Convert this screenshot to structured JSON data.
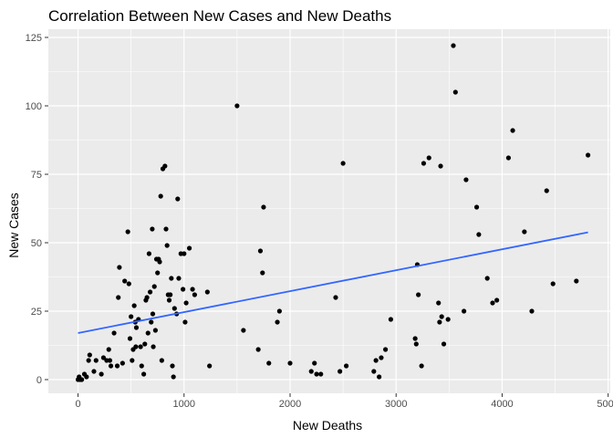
{
  "chart_data": {
    "type": "scatter",
    "title": "Correlation Between New Cases and New Deaths",
    "xlabel": "New Deaths",
    "ylabel": "New Cases",
    "xlim": [
      -280,
      5020
    ],
    "ylim": [
      -5,
      128
    ],
    "x_ticks": [
      0,
      1000,
      2000,
      3000,
      4000,
      5000
    ],
    "y_ticks": [
      0,
      25,
      50,
      75,
      100,
      125
    ],
    "x_minor": [
      500,
      1500,
      2500,
      3500,
      4500
    ],
    "y_minor": [
      12.5,
      37.5,
      62.5,
      87.5,
      112.5
    ],
    "grid": true,
    "legend": "none",
    "trend_line": {
      "x": [
        0,
        4810
      ],
      "y": [
        17,
        53.8
      ],
      "color": "#3366ff"
    },
    "colors": {
      "panel": "#ebebeb",
      "grid": "#ffffff",
      "point": "#000000",
      "tick": "#4d4d4d"
    },
    "points": [
      [
        0,
        0
      ],
      [
        10,
        1
      ],
      [
        20,
        0
      ],
      [
        35,
        0
      ],
      [
        60,
        2
      ],
      [
        80,
        1
      ],
      [
        100,
        7
      ],
      [
        110,
        9
      ],
      [
        150,
        3
      ],
      [
        170,
        7
      ],
      [
        220,
        2
      ],
      [
        240,
        8
      ],
      [
        270,
        7
      ],
      [
        290,
        11
      ],
      [
        300,
        7
      ],
      [
        310,
        5
      ],
      [
        340,
        17
      ],
      [
        370,
        5
      ],
      [
        380,
        30
      ],
      [
        390,
        41
      ],
      [
        420,
        6
      ],
      [
        440,
        36
      ],
      [
        470,
        54
      ],
      [
        480,
        35
      ],
      [
        490,
        15
      ],
      [
        500,
        23
      ],
      [
        510,
        7
      ],
      [
        520,
        11
      ],
      [
        530,
        27
      ],
      [
        540,
        21
      ],
      [
        545,
        12
      ],
      [
        550,
        19
      ],
      [
        570,
        22
      ],
      [
        590,
        12
      ],
      [
        600,
        5
      ],
      [
        620,
        2
      ],
      [
        630,
        13
      ],
      [
        640,
        29
      ],
      [
        650,
        30
      ],
      [
        660,
        17
      ],
      [
        670,
        46
      ],
      [
        680,
        32
      ],
      [
        690,
        21
      ],
      [
        700,
        55
      ],
      [
        705,
        24
      ],
      [
        710,
        12
      ],
      [
        720,
        34
      ],
      [
        730,
        18
      ],
      [
        740,
        44
      ],
      [
        750,
        39
      ],
      [
        760,
        44
      ],
      [
        770,
        43
      ],
      [
        780,
        67
      ],
      [
        790,
        7
      ],
      [
        800,
        77
      ],
      [
        820,
        78
      ],
      [
        830,
        55
      ],
      [
        840,
        49
      ],
      [
        850,
        31
      ],
      [
        860,
        29
      ],
      [
        870,
        31
      ],
      [
        880,
        37
      ],
      [
        890,
        5
      ],
      [
        900,
        1
      ],
      [
        910,
        26
      ],
      [
        930,
        24
      ],
      [
        940,
        66
      ],
      [
        950,
        37
      ],
      [
        970,
        46
      ],
      [
        990,
        33
      ],
      [
        1000,
        46
      ],
      [
        1010,
        21
      ],
      [
        1020,
        28
      ],
      [
        1050,
        48
      ],
      [
        1080,
        33
      ],
      [
        1100,
        31
      ],
      [
        1220,
        32
      ],
      [
        1240,
        5
      ],
      [
        1500,
        100
      ],
      [
        1560,
        18
      ],
      [
        1700,
        11
      ],
      [
        1720,
        47
      ],
      [
        1740,
        39
      ],
      [
        1750,
        63
      ],
      [
        1800,
        6
      ],
      [
        1880,
        21
      ],
      [
        1900,
        25
      ],
      [
        2000,
        6
      ],
      [
        2200,
        3
      ],
      [
        2230,
        6
      ],
      [
        2250,
        2
      ],
      [
        2290,
        2
      ],
      [
        2430,
        30
      ],
      [
        2470,
        3
      ],
      [
        2500,
        79
      ],
      [
        2530,
        5
      ],
      [
        2790,
        3
      ],
      [
        2810,
        7
      ],
      [
        2840,
        1
      ],
      [
        2860,
        8
      ],
      [
        2900,
        11
      ],
      [
        2950,
        22
      ],
      [
        3180,
        15
      ],
      [
        3190,
        13
      ],
      [
        3200,
        42
      ],
      [
        3210,
        31
      ],
      [
        3240,
        5
      ],
      [
        3260,
        79
      ],
      [
        3310,
        81
      ],
      [
        3400,
        28
      ],
      [
        3410,
        21
      ],
      [
        3420,
        78
      ],
      [
        3430,
        23
      ],
      [
        3450,
        13
      ],
      [
        3490,
        22
      ],
      [
        3540,
        122
      ],
      [
        3560,
        105
      ],
      [
        3640,
        25
      ],
      [
        3660,
        73
      ],
      [
        3760,
        63
      ],
      [
        3780,
        53
      ],
      [
        3860,
        37
      ],
      [
        3910,
        28
      ],
      [
        3950,
        29
      ],
      [
        4060,
        81
      ],
      [
        4100,
        91
      ],
      [
        4210,
        54
      ],
      [
        4280,
        25
      ],
      [
        4420,
        69
      ],
      [
        4480,
        35
      ],
      [
        4700,
        36
      ],
      [
        4810,
        82
      ]
    ]
  }
}
